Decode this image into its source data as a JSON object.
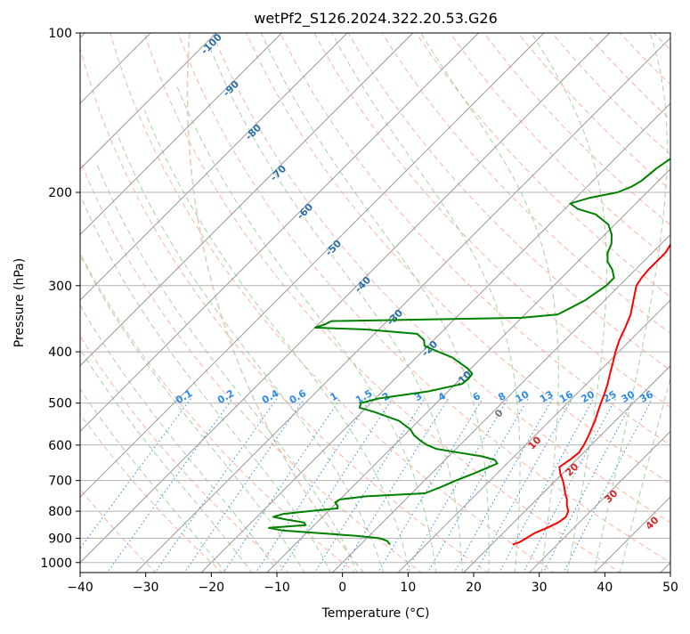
{
  "chart_data": {
    "type": "line",
    "subtype": "skew-t log-p",
    "title": "wetPf2_S126.2024.322.20.53.G26",
    "xlabel": "Temperature (°C)",
    "ylabel": "Pressure (hPa)",
    "xlim": [
      -40,
      50
    ],
    "ylim_hpa": [
      1050,
      100
    ],
    "y_scale": "log",
    "grid": true,
    "x_ticks": [
      -40,
      -30,
      -20,
      -10,
      0,
      10,
      20,
      30,
      40,
      50
    ],
    "y_ticks": [
      100,
      200,
      300,
      400,
      500,
      600,
      700,
      800,
      900,
      1000
    ],
    "colors": {
      "temperature": "#ff0000",
      "dewpoint": "#008000",
      "isotherm": "#999999",
      "dry_adiabat": "#ff9a80",
      "moist_adiabat": "#9ccd9c",
      "mixing_ratio": "#2e8ce6",
      "isotherm_label": "#2a6fa8",
      "adiabat_label": "#d62728",
      "zero_label": "#777777",
      "background_curve": "#d9c2a6"
    },
    "isotherm_labels": [
      "-100",
      "-90",
      "-80",
      "-70",
      "-60",
      "-50",
      "-40",
      "-30",
      "-20",
      "-10",
      "0",
      "10",
      "20",
      "30",
      "40"
    ],
    "mixing_ratio_labels": [
      "0.1",
      "0.2",
      "0.4",
      "0.6",
      "1",
      "1.5",
      "2",
      "3",
      "4",
      "6",
      "8",
      "10",
      "13",
      "16",
      "20",
      "25",
      "30",
      "36"
    ],
    "series": [
      {
        "role": "temperature",
        "points": [
          {
            "p": 925,
            "t": 23.2
          },
          {
            "p": 915,
            "t": 23.9
          },
          {
            "p": 900,
            "t": 24.3
          },
          {
            "p": 880,
            "t": 24.8
          },
          {
            "p": 860,
            "t": 25.9
          },
          {
            "p": 840,
            "t": 26.8
          },
          {
            "p": 820,
            "t": 27.1
          },
          {
            "p": 800,
            "t": 26.6
          },
          {
            "p": 780,
            "t": 25.5
          },
          {
            "p": 760,
            "t": 24.6
          },
          {
            "p": 740,
            "t": 23.4
          },
          {
            "p": 720,
            "t": 22.3
          },
          {
            "p": 700,
            "t": 21.1
          },
          {
            "p": 680,
            "t": 19.7
          },
          {
            "p": 660,
            "t": 18.5
          },
          {
            "p": 640,
            "t": 19.0
          },
          {
            "p": 620,
            "t": 19.3
          },
          {
            "p": 600,
            "t": 18.9
          },
          {
            "p": 580,
            "t": 18.3
          },
          {
            "p": 560,
            "t": 17.6
          },
          {
            "p": 540,
            "t": 16.9
          },
          {
            "p": 520,
            "t": 16.0
          },
          {
            "p": 500,
            "t": 15.1
          },
          {
            "p": 480,
            "t": 14.2
          },
          {
            "p": 460,
            "t": 13.2
          },
          {
            "p": 440,
            "t": 12.0
          },
          {
            "p": 420,
            "t": 10.8
          },
          {
            "p": 400,
            "t": 9.5
          },
          {
            "p": 380,
            "t": 8.3
          },
          {
            "p": 360,
            "t": 7.3
          },
          {
            "p": 340,
            "t": 6.1
          },
          {
            "p": 320,
            "t": 4.4
          },
          {
            "p": 300,
            "t": 2.6
          },
          {
            "p": 290,
            "t": 2.2
          },
          {
            "p": 280,
            "t": 2.0
          },
          {
            "p": 270,
            "t": 2.0
          },
          {
            "p": 260,
            "t": 2.0
          },
          {
            "p": 250,
            "t": 1.5
          },
          {
            "p": 240,
            "t": 2.4
          },
          {
            "p": 230,
            "t": 4.3
          },
          {
            "p": 220,
            "t": 6.3
          },
          {
            "p": 210,
            "t": 7.6
          },
          {
            "p": 200,
            "t": 8.1
          },
          {
            "p": 190,
            "t": 7.5
          },
          {
            "p": 180,
            "t": 7.1
          },
          {
            "p": 170,
            "t": 6.8
          },
          {
            "p": 160,
            "t": 6.8
          },
          {
            "p": 150,
            "t": 6.9
          },
          {
            "p": 140,
            "t": 7.2
          },
          {
            "p": 130,
            "t": 7.9
          },
          {
            "p": 120,
            "t": 9.4
          },
          {
            "p": 110,
            "t": 11.2
          },
          {
            "p": 100,
            "t": 13.5
          }
        ]
      },
      {
        "role": "dewpoint",
        "points": [
          {
            "p": 925,
            "t": 4.5
          },
          {
            "p": 910,
            "t": 3.5
          },
          {
            "p": 900,
            "t": 2.0
          },
          {
            "p": 890,
            "t": -2.0
          },
          {
            "p": 880,
            "t": -8.0
          },
          {
            "p": 870,
            "t": -14.0
          },
          {
            "p": 860,
            "t": -16.5
          },
          {
            "p": 850,
            "t": -11.3
          },
          {
            "p": 840,
            "t": -12.0
          },
          {
            "p": 830,
            "t": -15.0
          },
          {
            "p": 820,
            "t": -17.5
          },
          {
            "p": 810,
            "t": -16.5
          },
          {
            "p": 800,
            "t": -13.0
          },
          {
            "p": 790,
            "t": -9.0
          },
          {
            "p": 780,
            "t": -9.5
          },
          {
            "p": 770,
            "t": -10.3
          },
          {
            "p": 760,
            "t": -10.0
          },
          {
            "p": 750,
            "t": -6.5
          },
          {
            "p": 740,
            "t": 2.0
          },
          {
            "p": 720,
            "t": 3.5
          },
          {
            "p": 700,
            "t": 4.8
          },
          {
            "p": 680,
            "t": 6.4
          },
          {
            "p": 660,
            "t": 7.8
          },
          {
            "p": 650,
            "t": 8.5
          },
          {
            "p": 640,
            "t": 7.6
          },
          {
            "p": 630,
            "t": 5.0
          },
          {
            "p": 620,
            "t": 1.0
          },
          {
            "p": 610,
            "t": -3.0
          },
          {
            "p": 600,
            "t": -5.0
          },
          {
            "p": 590,
            "t": -6.5
          },
          {
            "p": 575,
            "t": -8.5
          },
          {
            "p": 560,
            "t": -10.0
          },
          {
            "p": 540,
            "t": -13.0
          },
          {
            "p": 520,
            "t": -18.0
          },
          {
            "p": 510,
            "t": -21.0
          },
          {
            "p": 500,
            "t": -21.5
          },
          {
            "p": 490,
            "t": -19.5
          },
          {
            "p": 475,
            "t": -13.0
          },
          {
            "p": 460,
            "t": -9.0
          },
          {
            "p": 450,
            "t": -8.8
          },
          {
            "p": 440,
            "t": -9.0
          },
          {
            "p": 430,
            "t": -10.5
          },
          {
            "p": 420,
            "t": -12.5
          },
          {
            "p": 410,
            "t": -14.5
          },
          {
            "p": 400,
            "t": -17.5
          },
          {
            "p": 390,
            "t": -20.5
          },
          {
            "p": 380,
            "t": -21.5
          },
          {
            "p": 370,
            "t": -23.5
          },
          {
            "p": 363,
            "t": -32.0
          },
          {
            "p": 360,
            "t": -40.0
          },
          {
            "p": 355,
            "t": -39.0
          },
          {
            "p": 350,
            "t": -38.5
          },
          {
            "p": 345,
            "t": -10.0
          },
          {
            "p": 340,
            "t": -5.0
          },
          {
            "p": 330,
            "t": -4.0
          },
          {
            "p": 320,
            "t": -3.0
          },
          {
            "p": 310,
            "t": -2.5
          },
          {
            "p": 300,
            "t": -2.0
          },
          {
            "p": 290,
            "t": -2.0
          },
          {
            "p": 280,
            "t": -3.5
          },
          {
            "p": 270,
            "t": -5.5
          },
          {
            "p": 260,
            "t": -6.8
          },
          {
            "p": 250,
            "t": -7.6
          },
          {
            "p": 240,
            "t": -9.0
          },
          {
            "p": 230,
            "t": -11.0
          },
          {
            "p": 220,
            "t": -14.5
          },
          {
            "p": 215,
            "t": -18.0
          },
          {
            "p": 210,
            "t": -20.0
          },
          {
            "p": 205,
            "t": -18.0
          },
          {
            "p": 200,
            "t": -14.5
          },
          {
            "p": 195,
            "t": -13.2
          },
          {
            "p": 190,
            "t": -12.6
          },
          {
            "p": 180,
            "t": -12.2
          },
          {
            "p": 170,
            "t": -11.3
          },
          {
            "p": 160,
            "t": -10.2
          },
          {
            "p": 150,
            "t": -9.5
          },
          {
            "p": 140,
            "t": -9.0
          },
          {
            "p": 130,
            "t": -8.8
          },
          {
            "p": 120,
            "t": -8.7
          },
          {
            "p": 110,
            "t": -8.2
          },
          {
            "p": 100,
            "t": -7.6
          }
        ]
      }
    ]
  }
}
